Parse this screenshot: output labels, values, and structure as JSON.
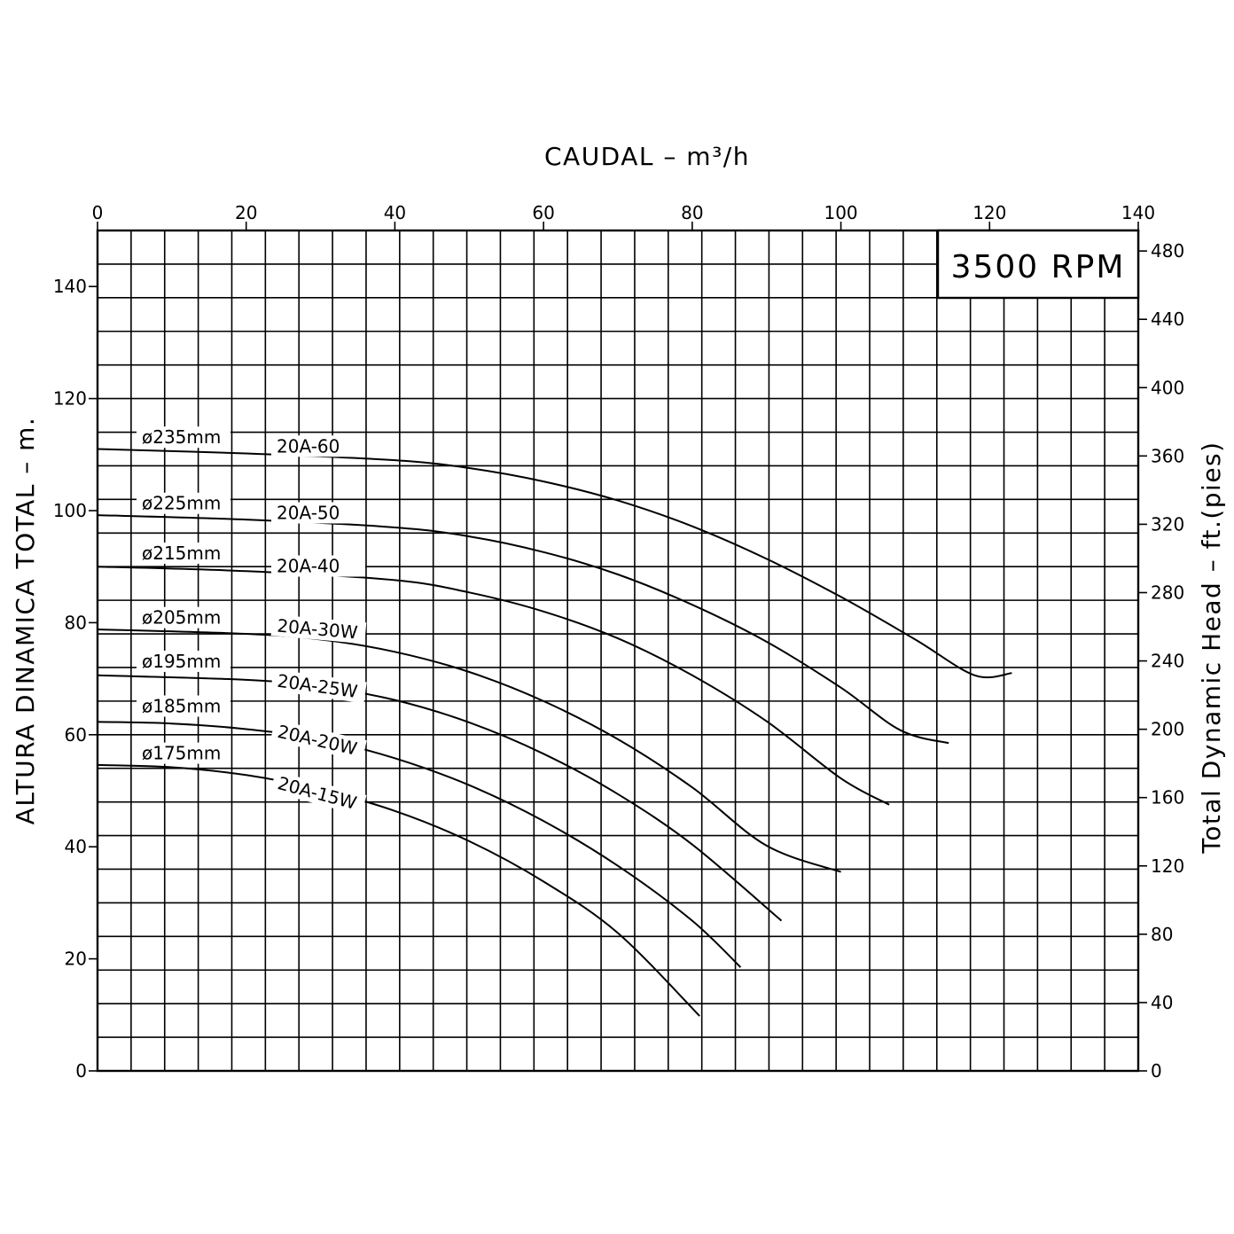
{
  "chart_data": {
    "type": "line",
    "title": "",
    "xlabel": "CAUDAL  –  m³/h",
    "ylabel": "ALTURA DINAMICA TOTAL  –  m.",
    "y2label": "Total Dynamic Head  –  ft.(pies)",
    "xlim": [
      0,
      140
    ],
    "ylim": [
      0,
      150
    ],
    "y2lim": [
      0,
      492
    ],
    "x_ticks": [
      "0",
      "20",
      "40",
      "60",
      "80",
      "100",
      "120",
      "140"
    ],
    "y_ticks": [
      "0",
      "20",
      "40",
      "60",
      "80",
      "100",
      "120",
      "140"
    ],
    "y2_ticks": [
      "0",
      "40",
      "80",
      "120",
      "160",
      "200",
      "240",
      "280",
      "320",
      "360",
      "400",
      "440",
      "480"
    ],
    "grid": true,
    "speed_label": "3500  RPM",
    "series": [
      {
        "name": "20A-60",
        "diameter": "ø235mm",
        "x": [
          0,
          20,
          40,
          50,
          60,
          70,
          80,
          90,
          100,
          110,
          118,
          123
        ],
        "y": [
          111,
          110.2,
          109,
          107.6,
          105.2,
          101.8,
          97.2,
          91.4,
          84.6,
          77,
          70.6,
          71
        ]
      },
      {
        "name": "20A-50",
        "diameter": "ø225mm",
        "x": [
          0,
          20,
          40,
          50,
          60,
          70,
          80,
          90,
          100,
          108,
          114.5
        ],
        "y": [
          99.2,
          98.4,
          97,
          95.4,
          92.6,
          88.6,
          83.2,
          76.6,
          68.4,
          60.8,
          58.5
        ]
      },
      {
        "name": "20A-40",
        "diameter": "ø215mm",
        "x": [
          0,
          20,
          40,
          50,
          60,
          70,
          80,
          90,
          100,
          106.5
        ],
        "y": [
          90,
          89.2,
          87.6,
          85.4,
          82,
          77.2,
          70.6,
          62.4,
          52.2,
          47.5
        ]
      },
      {
        "name": "20A-30W",
        "diameter": "ø205mm",
        "x": [
          0,
          20,
          30,
          40,
          50,
          60,
          70,
          80,
          90,
          100
        ],
        "y": [
          78.8,
          78,
          77,
          74.8,
          71.2,
          66,
          59.2,
          50.6,
          40.2,
          35.5
        ]
      },
      {
        "name": "20A-25W",
        "diameter": "ø195mm",
        "x": [
          0,
          20,
          30,
          40,
          50,
          60,
          70,
          80,
          92
        ],
        "y": [
          70.6,
          69.8,
          68.6,
          66.2,
          62.2,
          56.6,
          49.4,
          40.4,
          26.8
        ]
      },
      {
        "name": "20A-20W",
        "diameter": "ø185mm",
        "x": [
          0,
          10,
          20,
          30,
          40,
          50,
          60,
          70,
          80,
          86.5
        ],
        "y": [
          62.3,
          62,
          61,
          59.2,
          55.8,
          51,
          44.6,
          36.6,
          26.8,
          18.5
        ]
      },
      {
        "name": "20A-15W",
        "diameter": "ø175mm",
        "x": [
          0,
          10,
          20,
          30,
          40,
          50,
          60,
          70,
          81
        ],
        "y": [
          54.6,
          54.2,
          52.8,
          50.2,
          46.4,
          41,
          33.8,
          24.6,
          9.8
        ]
      }
    ],
    "diameter_label_y": [
      112,
      100.2,
      91.3,
      79.8,
      72,
      64,
      55.6
    ],
    "model_label_y": [
      110.4,
      98.5,
      89,
      78.4,
      68.6,
      59.6,
      50.4
    ],
    "model_label_rot": [
      0,
      0,
      0,
      5,
      8,
      13,
      15
    ]
  }
}
